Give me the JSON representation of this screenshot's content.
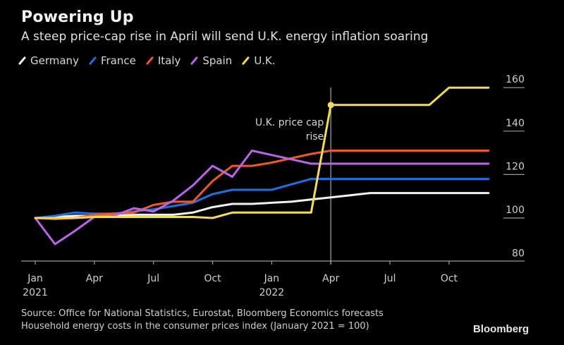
{
  "header": {
    "title": "Powering Up",
    "subtitle": "A steep price-cap rise in April will send U.K. energy inflation soaring"
  },
  "legend": [
    {
      "label": "Germany",
      "color": "#f2f2f2"
    },
    {
      "label": "France",
      "color": "#1f6fe0"
    },
    {
      "label": "Italy",
      "color": "#f0582a"
    },
    {
      "label": "Spain",
      "color": "#b866e6"
    },
    {
      "label": "U.K.",
      "color": "#f2dc57"
    }
  ],
  "footer": {
    "source": "Source: Office for National Statistics, Eurostat, Bloomberg Economics forecasts",
    "note": "Household energy costs in the consumer prices index (January 2021 = 100)",
    "brand": "Bloomberg"
  },
  "chart_data": {
    "type": "line",
    "title": "Powering Up",
    "subtitle": "A steep price-cap rise in April will send U.K. energy inflation soaring",
    "xlabel": "",
    "ylabel": "",
    "x": [
      "Jan 2021",
      "Feb 2021",
      "Mar 2021",
      "Apr 2021",
      "May 2021",
      "Jun 2021",
      "Jul 2021",
      "Aug 2021",
      "Sep 2021",
      "Oct 2021",
      "Nov 2021",
      "Dec 2021",
      "Jan 2022",
      "Feb 2022",
      "Mar 2022",
      "Apr 2022",
      "May 2022",
      "Jun 2022",
      "Jul 2022",
      "Aug 2022",
      "Sep 2022",
      "Oct 2022",
      "Nov 2022",
      "Dec 2022"
    ],
    "x_ticks": [
      {
        "index": 0,
        "label": "Jan",
        "sublabel": "2021"
      },
      {
        "index": 3,
        "label": "Apr",
        "sublabel": ""
      },
      {
        "index": 6,
        "label": "Jul",
        "sublabel": ""
      },
      {
        "index": 9,
        "label": "Oct",
        "sublabel": ""
      },
      {
        "index": 12,
        "label": "Jan",
        "sublabel": "2022"
      },
      {
        "index": 15,
        "label": "Apr",
        "sublabel": ""
      },
      {
        "index": 18,
        "label": "Jul",
        "sublabel": ""
      },
      {
        "index": 21,
        "label": "Oct",
        "sublabel": ""
      }
    ],
    "y_ticks": [
      80,
      100,
      120,
      140,
      160
    ],
    "ylim": [
      80,
      163
    ],
    "y_axis_side": "right",
    "grid": false,
    "legend_position": "top-left",
    "series": [
      {
        "name": "Germany",
        "color": "#f2f2f2",
        "values": [
          100,
          100.5,
          101,
          101,
          101,
          101.5,
          101.5,
          101.5,
          102.5,
          105,
          106.5,
          106.5,
          107,
          107.5,
          108.5,
          109.5,
          110.5,
          111.5,
          111.5,
          111.5,
          111.5,
          111.5,
          111.5,
          111.5
        ]
      },
      {
        "name": "France",
        "color": "#1f6fe0",
        "values": [
          100,
          101,
          102.5,
          102,
          102,
          103,
          104,
          105.5,
          107,
          111,
          113,
          113,
          113,
          115.5,
          118,
          118,
          118,
          118,
          118,
          118,
          118,
          118,
          118,
          118
        ]
      },
      {
        "name": "Italy",
        "color": "#f0582a",
        "values": [
          100,
          99.5,
          100,
          101.5,
          102,
          102.5,
          106,
          107.5,
          107.5,
          117,
          124,
          124,
          125.5,
          127.5,
          129.5,
          131,
          131,
          131,
          131,
          131,
          131,
          131,
          131,
          131
        ]
      },
      {
        "name": "Spain",
        "color": "#b866e6",
        "values": [
          100,
          88,
          94,
          100.5,
          101,
          104.5,
          103,
          108,
          115,
          124,
          119,
          131,
          129,
          127,
          125,
          125,
          125,
          125,
          125,
          125,
          125,
          125,
          125,
          125
        ]
      },
      {
        "name": "U.K.",
        "color": "#f2dc57",
        "values": [
          100,
          100,
          100,
          100.5,
          100.5,
          100.5,
          100.5,
          100.5,
          100.5,
          100,
          102.5,
          102.5,
          102.5,
          102.5,
          102.5,
          152,
          152,
          152,
          152,
          152,
          152,
          160,
          160,
          160
        ]
      }
    ],
    "annotations": [
      {
        "text": "U.K. price cap rise",
        "x_index": 15,
        "series": "U.K.",
        "value": 152,
        "marker": "vertical-line-and-dot"
      }
    ]
  }
}
